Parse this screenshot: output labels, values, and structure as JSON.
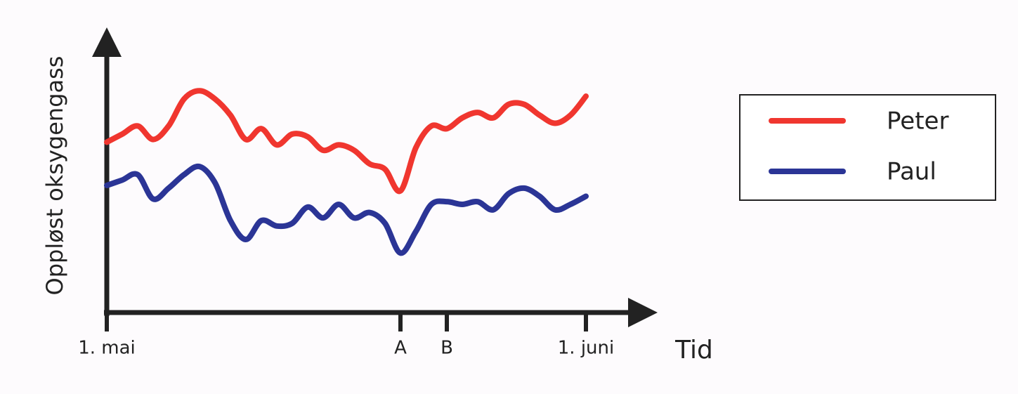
{
  "chart_data": {
    "type": "line",
    "y_label": "Oppløst oksygengass",
    "x_label": "Tid",
    "categories": [
      "1. mai",
      null,
      null,
      null,
      null,
      null,
      null,
      null,
      null,
      null,
      null,
      null,
      null,
      null,
      null,
      null,
      null,
      null,
      null,
      "A",
      null,
      null,
      "B",
      null,
      null,
      null,
      null,
      null,
      null,
      null,
      null,
      "1. juni"
    ],
    "ylim": [
      0,
      100
    ],
    "series": [
      {
        "name": "Peter",
        "color": "#f0362f",
        "values": [
          63,
          66,
          69,
          64,
          69,
          79,
          82,
          79,
          73,
          64,
          68,
          62,
          66,
          65,
          60,
          62,
          60,
          55,
          53,
          45,
          61,
          69,
          68,
          72,
          74,
          72,
          77,
          77,
          73,
          70,
          73,
          80
        ]
      },
      {
        "name": "Paul",
        "color": "#2b3596",
        "values": [
          47,
          49,
          51,
          42,
          46,
          51,
          54,
          48,
          34,
          27,
          34,
          32,
          33,
          39,
          35,
          40,
          35,
          37,
          33,
          22,
          30,
          40,
          41,
          40,
          41,
          38,
          44,
          46,
          43,
          38,
          40,
          43
        ]
      }
    ],
    "legend": "right"
  }
}
